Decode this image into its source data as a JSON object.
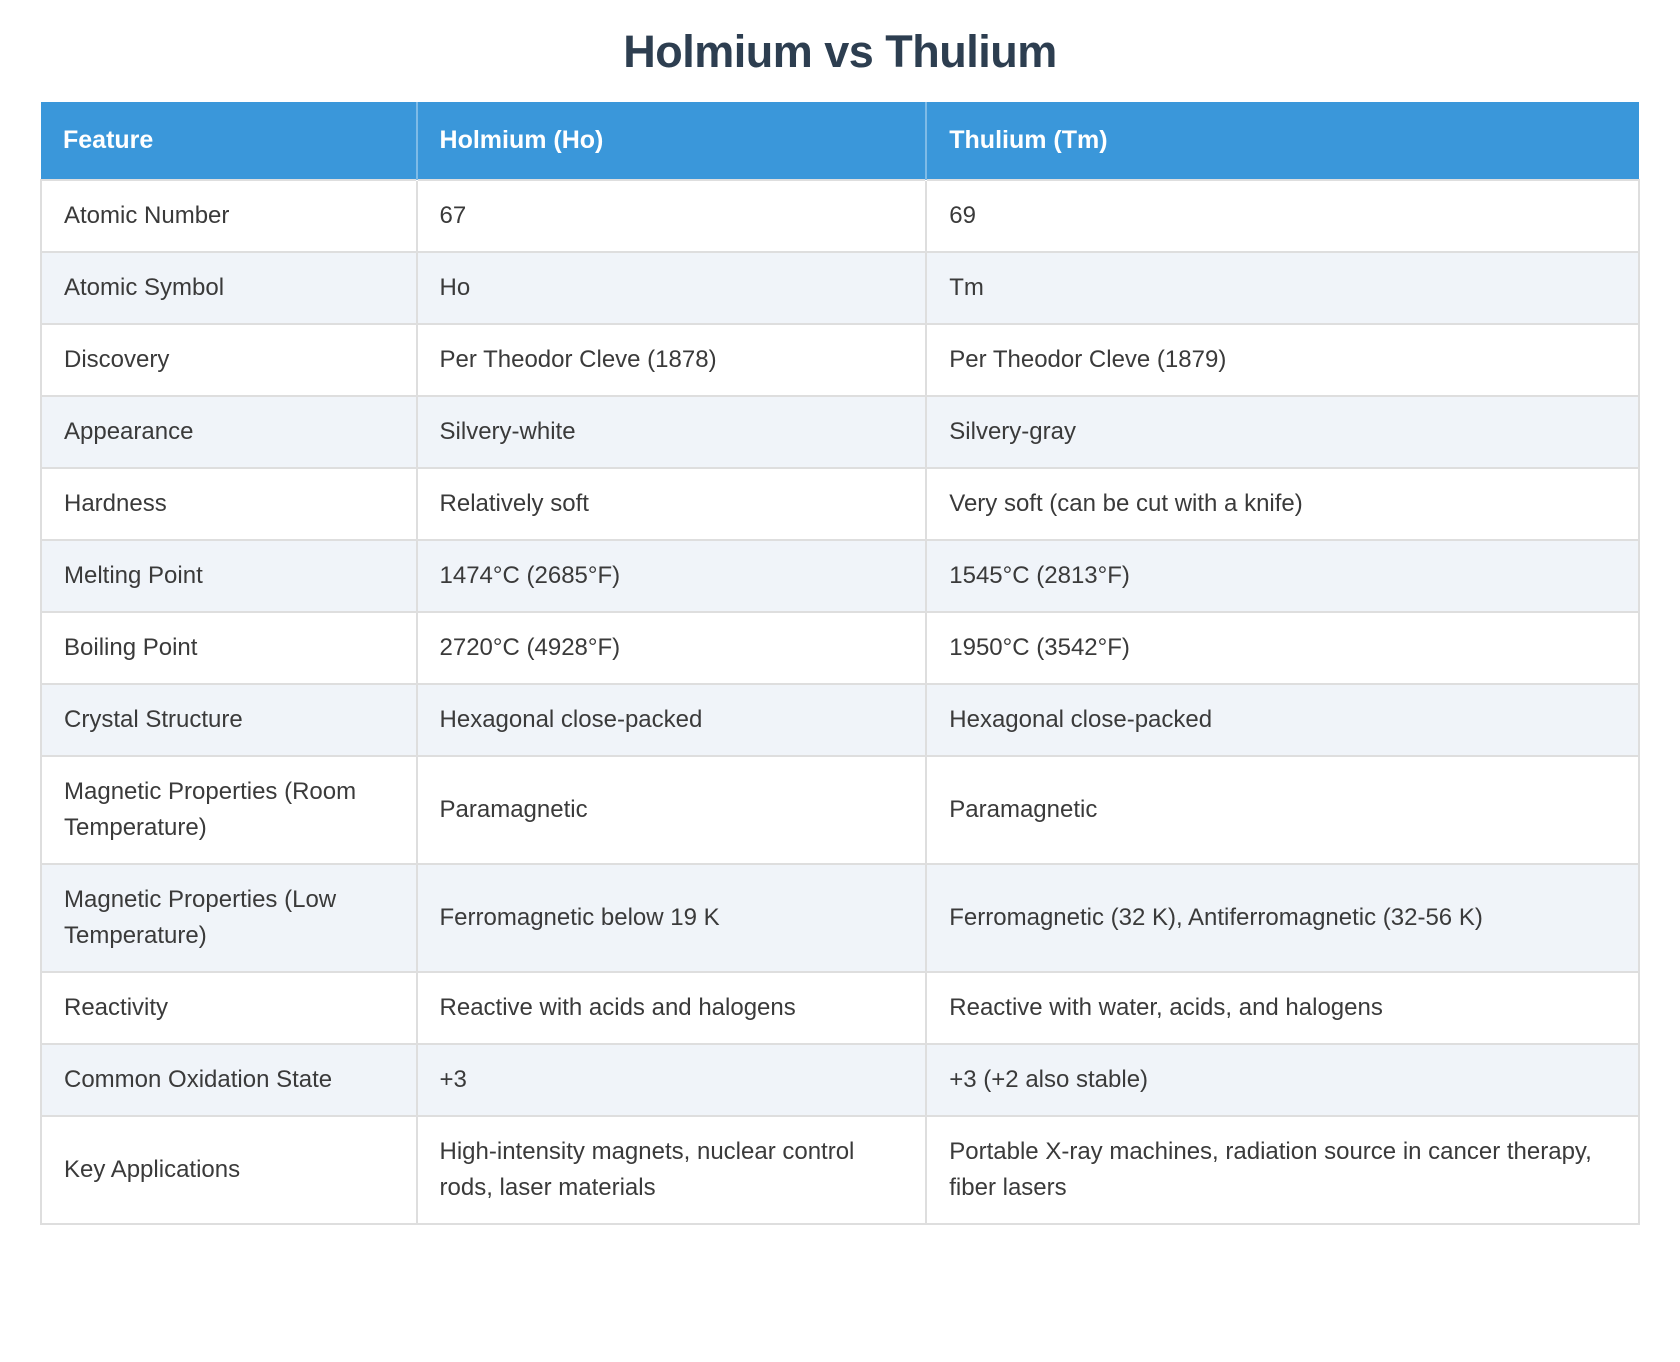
{
  "page": {
    "title": "Holmium vs Thulium"
  },
  "colors": {
    "header_bg": "#3a97da",
    "header_text": "#ffffff",
    "stripe_bg": "#f0f4f9",
    "row_bg": "#ffffff",
    "border": "#dedede",
    "title_text": "#2d3e50",
    "cell_text": "#3a3a3a"
  },
  "table": {
    "headers": [
      "Feature",
      "Holmium (Ho)",
      "Thulium (Tm)"
    ],
    "rows": [
      {
        "feature": "Atomic Number",
        "ho": "67",
        "tm": "69"
      },
      {
        "feature": "Atomic Symbol",
        "ho": "Ho",
        "tm": "Tm"
      },
      {
        "feature": "Discovery",
        "ho": "Per Theodor Cleve (1878)",
        "tm": "Per Theodor Cleve (1879)"
      },
      {
        "feature": "Appearance",
        "ho": "Silvery-white",
        "tm": "Silvery-gray"
      },
      {
        "feature": "Hardness",
        "ho": "Relatively soft",
        "tm": "Very soft (can be cut with a knife)"
      },
      {
        "feature": "Melting Point",
        "ho": "1474°C (2685°F)",
        "tm": "1545°C (2813°F)"
      },
      {
        "feature": "Boiling Point",
        "ho": "2720°C (4928°F)",
        "tm": "1950°C (3542°F)"
      },
      {
        "feature": "Crystal Structure",
        "ho": "Hexagonal close-packed",
        "tm": "Hexagonal close-packed"
      },
      {
        "feature": "Magnetic Properties (Room Temperature)",
        "ho": "Paramagnetic",
        "tm": "Paramagnetic"
      },
      {
        "feature": "Magnetic Properties (Low Temperature)",
        "ho": "Ferromagnetic below 19 K",
        "tm": "Ferromagnetic (32 K), Antiferromagnetic (32-56 K)"
      },
      {
        "feature": "Reactivity",
        "ho": "Reactive with acids and halogens",
        "tm": "Reactive with water, acids, and halogens"
      },
      {
        "feature": "Common Oxidation State",
        "ho": "+3",
        "tm": "+3 (+2 also stable)"
      },
      {
        "feature": "Key Applications",
        "ho": "High-intensity magnets, nuclear control rods, laser materials",
        "tm": "Portable X-ray machines, radiation source in cancer therapy, fiber lasers"
      }
    ]
  }
}
